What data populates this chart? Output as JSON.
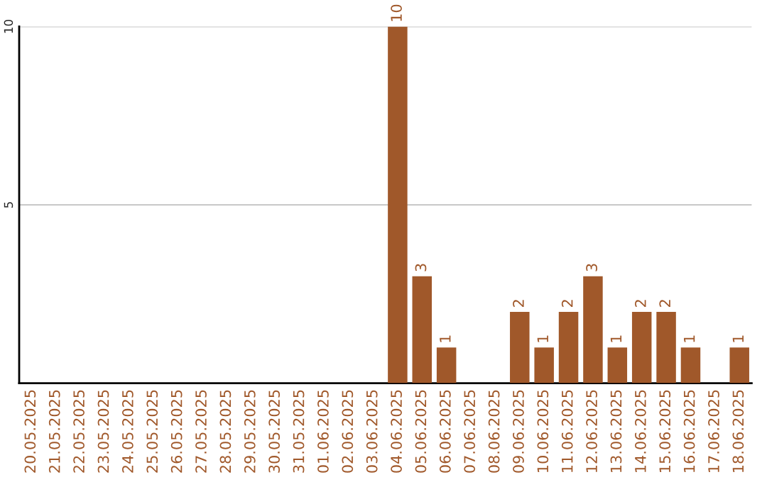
{
  "chart_data": {
    "type": "bar",
    "categories": [
      "20.05.2025",
      "21.05.2025",
      "22.05.2025",
      "23.05.2025",
      "24.05.2025",
      "25.05.2025",
      "26.05.2025",
      "27.05.2025",
      "28.05.2025",
      "29.05.2025",
      "30.05.2025",
      "31.05.2025",
      "01.06.2025",
      "02.06.2025",
      "03.06.2025",
      "04.06.2025",
      "05.06.2025",
      "06.06.2025",
      "07.06.2025",
      "08.06.2025",
      "09.06.2025",
      "10.06.2025",
      "11.06.2025",
      "12.06.2025",
      "13.06.2025",
      "14.06.2025",
      "15.06.2025",
      "16.06.2025",
      "17.06.2025",
      "18.06.2025"
    ],
    "values": [
      0,
      0,
      0,
      0,
      0,
      0,
      0,
      0,
      0,
      0,
      0,
      0,
      0,
      0,
      0,
      10,
      3,
      1,
      0,
      0,
      2,
      1,
      2,
      3,
      1,
      2,
      2,
      1,
      0,
      1
    ],
    "value_labels": [
      null,
      null,
      null,
      null,
      null,
      null,
      null,
      null,
      null,
      null,
      null,
      null,
      null,
      null,
      null,
      "10",
      "3",
      "1",
      null,
      null,
      "2",
      "1",
      "2",
      "3",
      "1",
      "2",
      "2",
      "1",
      null,
      "1"
    ],
    "color": "#a0582a",
    "ylim": [
      0,
      10
    ],
    "yticks": [
      5,
      10
    ],
    "grid": "y"
  }
}
